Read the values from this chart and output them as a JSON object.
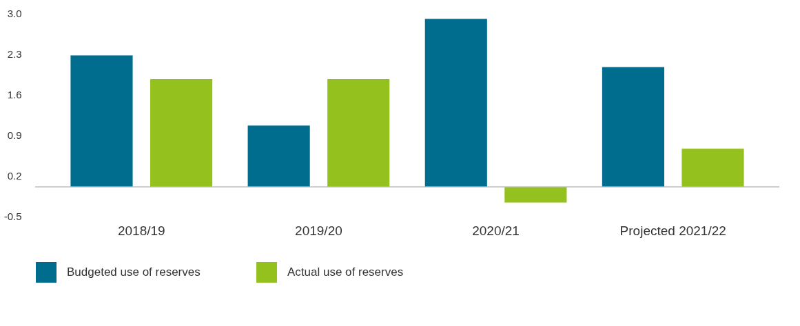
{
  "chart_data": {
    "type": "bar",
    "categories": [
      "2018/19",
      "2019/20",
      "2020/21",
      "Projected 2021/22"
    ],
    "series": [
      {
        "name": "Budgeted use of reserves",
        "color": "#006d8f",
        "values": [
          2.27,
          1.06,
          2.9,
          2.07
        ]
      },
      {
        "name": "Actual use of reserves",
        "color": "#95c11f",
        "values": [
          1.86,
          1.86,
          -0.27,
          0.66
        ]
      }
    ],
    "ylim": [
      -0.5,
      3.0
    ],
    "yticks": [
      {
        "value": 3.0,
        "label": "3.0"
      },
      2.3,
      1.6,
      0.9,
      0.2,
      {
        "value": -0.5,
        "label": "-0.5"
      }
    ],
    "ref_lines": [
      {
        "axis": "y",
        "value": 0,
        "color": "#bbbbbb"
      }
    ],
    "grid": false,
    "legend": "bottom"
  }
}
